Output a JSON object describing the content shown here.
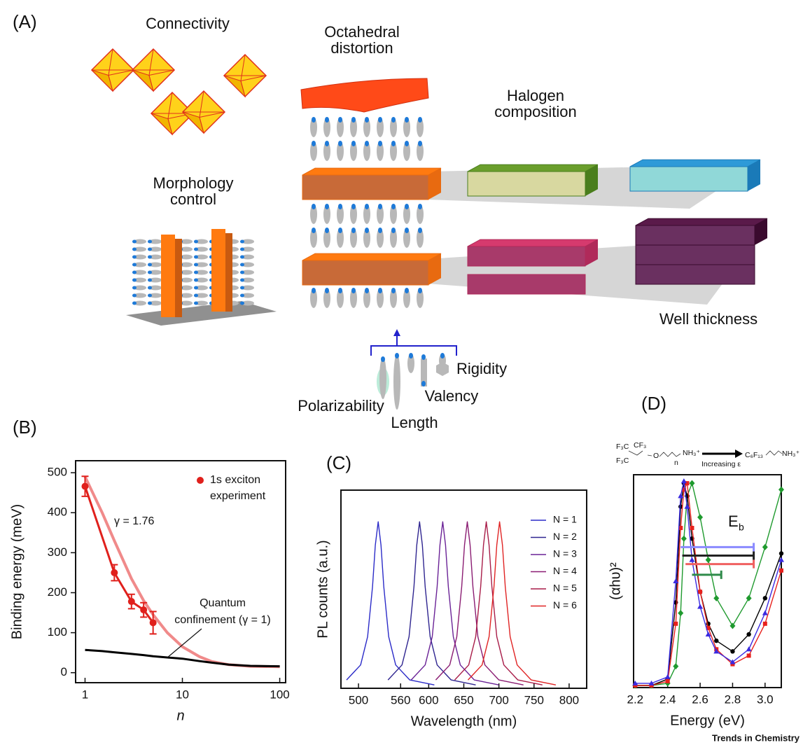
{
  "panels": [
    "(A)",
    "(B)",
    "(C)",
    "(D)"
  ],
  "diagram": {
    "connectivity": [
      "Connectivity"
    ],
    "distortion": [
      "Octahedral",
      "distortion"
    ],
    "halogen": [
      "Halogen",
      "composition"
    ],
    "morphology": [
      "Morphology",
      "control"
    ],
    "well": [
      "Well thickness"
    ],
    "rigidity": [
      "Rigidity"
    ],
    "polarizability": [
      "Polarizability"
    ],
    "valency": [
      "Valency"
    ],
    "length": [
      "Length"
    ]
  },
  "chart_data": [
    {
      "type": "line",
      "xscale": "log",
      "xlabel": "n",
      "ylabel": "Binding energy (meV)",
      "xlim": [
        0.8,
        115
      ],
      "ylim": [
        -25,
        530
      ],
      "xticks": [
        1,
        10,
        100
      ],
      "yticks": [
        0,
        100,
        200,
        300,
        400,
        500
      ],
      "legend": "upper right",
      "x": [
        1,
        1.5,
        2,
        3,
        4,
        5,
        7,
        10,
        15,
        20,
        30,
        50,
        100
      ],
      "fit_label": "γ = 1.76",
      "confinement_label": [
        "Quantum",
        "confinement (γ = 1)"
      ],
      "series": [
        {
          "color": "#f08a8a",
          "values": [
            490,
            400,
            330,
            235,
            180,
            145,
            100,
            65,
            40,
            28,
            20,
            16,
            15
          ]
        },
        {
          "color": "#000000",
          "values": [
            57,
            54,
            51,
            47,
            44,
            41,
            38,
            35,
            29,
            25,
            20,
            17,
            16
          ]
        },
        {
          "name": [
            "1s exciton",
            "experiment"
          ],
          "color": "#e0201c",
          "marker": "circle",
          "x": [
            1,
            2,
            3,
            4,
            5
          ],
          "values": [
            466,
            250,
            178,
            157,
            125
          ],
          "errors": [
            25,
            20,
            18,
            18,
            28
          ]
        }
      ]
    },
    {
      "type": "line",
      "xlabel": "Wavelength (nm)",
      "ylabel": "PL counts (a.u.)",
      "xlim": [
        475,
        825
      ],
      "ylim": [
        0,
        1.19
      ],
      "xticks": [
        500,
        560,
        600,
        650,
        700,
        750,
        800
      ],
      "legend": "upper right",
      "series": [
        {
          "name": "N = 1",
          "color": "#2b2bc8",
          "x": [
            483,
            503,
            513,
            520,
            524,
            528,
            532,
            536,
            543,
            553,
            573,
            608
          ],
          "values": [
            0.05,
            0.14,
            0.31,
            0.61,
            0.86,
            1,
            0.86,
            0.61,
            0.31,
            0.14,
            0.05,
            0.02
          ]
        },
        {
          "name": "N = 2",
          "color": "#2f2590",
          "x": [
            542,
            562,
            572,
            579,
            583,
            587,
            591,
            595,
            602,
            612,
            632,
            667
          ],
          "values": [
            0.05,
            0.14,
            0.31,
            0.61,
            0.86,
            1,
            0.86,
            0.61,
            0.31,
            0.14,
            0.05,
            0.02
          ]
        },
        {
          "name": "N = 3",
          "color": "#6a2296",
          "x": [
            575,
            595,
            605,
            612,
            616,
            620,
            624,
            628,
            635,
            645,
            665,
            700
          ],
          "values": [
            0.05,
            0.14,
            0.31,
            0.61,
            0.86,
            1,
            0.86,
            0.61,
            0.31,
            0.14,
            0.05,
            0.02
          ]
        },
        {
          "name": "N = 4",
          "color": "#8a1c72",
          "x": [
            610,
            630,
            640,
            647,
            651,
            655,
            659,
            663,
            670,
            680,
            700,
            735
          ],
          "values": [
            0.05,
            0.14,
            0.31,
            0.61,
            0.86,
            1,
            0.86,
            0.61,
            0.31,
            0.14,
            0.05,
            0.02
          ]
        },
        {
          "name": "N = 5",
          "color": "#a81c48",
          "x": [
            637,
            657,
            667,
            674,
            678,
            682,
            686,
            690,
            697,
            707,
            727,
            762
          ],
          "values": [
            0.05,
            0.14,
            0.31,
            0.61,
            0.86,
            1,
            0.86,
            0.61,
            0.31,
            0.14,
            0.05,
            0.02
          ]
        },
        {
          "name": "N = 6",
          "color": "#e02424",
          "x": [
            656,
            676,
            686,
            693,
            697,
            701,
            705,
            709,
            716,
            726,
            746,
            781
          ],
          "values": [
            0.05,
            0.14,
            0.31,
            0.61,
            0.86,
            1,
            0.86,
            0.61,
            0.31,
            0.14,
            0.05,
            0.02
          ]
        }
      ]
    },
    {
      "type": "line",
      "xlabel": "Energy (eV)",
      "ylabel": "(αhυ)²",
      "xlim": [
        2.19,
        3.1
      ],
      "ylim": [
        0,
        1
      ],
      "xticks": [
        2.2,
        2.4,
        2.6,
        2.8,
        {
          "value": 3,
          "label": "3.0"
        }
      ],
      "x": [
        2.2,
        2.3,
        2.4,
        2.45,
        2.48,
        2.5,
        2.52,
        2.55,
        2.6,
        2.65,
        2.7,
        2.8,
        2.9,
        3.0,
        3.1
      ],
      "series": [
        {
          "color": "#1f9a2e",
          "marker": "diamond",
          "values": [
            0.01,
            0.01,
            0.02,
            0.1,
            0.35,
            0.7,
            0.9,
            0.96,
            0.8,
            0.6,
            0.42,
            0.29,
            0.42,
            0.66,
            0.93
          ]
        },
        {
          "color": "#000000",
          "marker": "circle",
          "values": [
            0.01,
            0.01,
            0.04,
            0.4,
            0.85,
            0.96,
            0.9,
            0.7,
            0.45,
            0.3,
            0.22,
            0.17,
            0.25,
            0.42,
            0.63
          ]
        },
        {
          "color": "#e8201c",
          "marker": "square",
          "values": [
            0.01,
            0.01,
            0.03,
            0.3,
            0.75,
            0.93,
            0.96,
            0.75,
            0.45,
            0.28,
            0.18,
            0.11,
            0.15,
            0.3,
            0.55
          ]
        },
        {
          "color": "#3a2ae0",
          "marker": "triangle",
          "values": [
            0.02,
            0.02,
            0.05,
            0.5,
            0.9,
            0.97,
            0.85,
            0.6,
            0.38,
            0.25,
            0.17,
            0.12,
            0.18,
            0.35,
            0.6
          ]
        }
      ],
      "bands": [
        {
          "color": "#8a8aff",
          "start": 2.48,
          "end": 2.93,
          "level": 0.66
        },
        {
          "color": "#222222",
          "start": 2.49,
          "end": 2.93,
          "level": 0.62
        },
        {
          "color": "#f06060",
          "start": 2.51,
          "end": 2.93,
          "level": 0.58
        },
        {
          "color": "#2f8a4a",
          "start": 2.55,
          "end": 2.73,
          "level": 0.53
        }
      ],
      "band_label": [
        "E",
        "b"
      ],
      "scheme": [
        {
          "text": "F₃C",
          "color": "#2222cc"
        },
        {
          "text": "CF₃",
          "color": "#2222cc"
        },
        {
          "text": "F₃C",
          "color": "#2222cc"
        },
        {
          "text": "O",
          "color": "#000000"
        },
        {
          "text": "n",
          "color": "#000000"
        },
        {
          "text": "NH₃⁺",
          "color": "#000000"
        },
        {
          "text": "Increasing ε",
          "color": "#000000"
        },
        {
          "text": "C₆F₁₃",
          "color": "#1f9a2e"
        },
        {
          "text": "NH₃⁺",
          "color": "#000000"
        }
      ]
    }
  ],
  "footer": "Trends in Chemistry"
}
